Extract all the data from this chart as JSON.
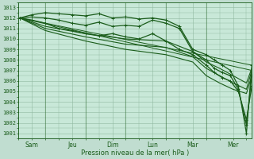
{
  "title": "Pression niveau de la mer( hPa )",
  "ylabel_values": [
    1001,
    1002,
    1003,
    1004,
    1005,
    1006,
    1007,
    1008,
    1009,
    1010,
    1011,
    1012,
    1013
  ],
  "ylim": [
    1000.5,
    1013.5
  ],
  "background_color": "#c0ddd0",
  "plot_bg_color": "#c8e8d8",
  "grid_color": "#90b8a0",
  "line_color": "#1a5c1a",
  "x_labels": [
    "Sam",
    "Jeu",
    "Dim",
    "Lun",
    "Mar",
    "Mer"
  ],
  "x_ticks_pos": [
    0.5,
    2.0,
    3.5,
    5.0,
    6.5,
    8.0
  ],
  "x_vlines": [
    0,
    1.0,
    2.5,
    4.0,
    5.5,
    7.0,
    8.7
  ],
  "xlim": [
    0,
    8.7
  ],
  "lines": [
    {
      "x": [
        0.05,
        0.5,
        1.0,
        1.5,
        2.0,
        2.5,
        3.0,
        3.5,
        4.0,
        4.5,
        5.0,
        5.5,
        6.0,
        6.5,
        7.0,
        7.3,
        7.6,
        7.9,
        8.2,
        8.5,
        8.7
      ],
      "y": [
        1012.0,
        1012.3,
        1012.5,
        1012.4,
        1012.3,
        1012.2,
        1012.4,
        1012.0,
        1012.1,
        1011.9,
        1012.0,
        1011.8,
        1011.2,
        1009.0,
        1008.5,
        1008.0,
        1007.5,
        1007.0,
        1005.5,
        1001.0,
        1007.5
      ],
      "marker": true,
      "lw": 0.9
    },
    {
      "x": [
        0.05,
        0.5,
        1.0,
        1.5,
        2.0,
        2.5,
        3.0,
        3.5,
        4.0,
        4.5,
        5.0,
        5.5,
        6.0,
        6.5,
        7.0,
        7.3,
        7.6,
        7.9,
        8.2,
        8.5,
        8.7
      ],
      "y": [
        1012.0,
        1012.1,
        1012.0,
        1011.8,
        1011.5,
        1011.3,
        1011.6,
        1011.2,
        1011.3,
        1011.2,
        1011.8,
        1011.5,
        1011.0,
        1008.8,
        1008.0,
        1007.2,
        1006.8,
        1006.5,
        1005.2,
        1001.8,
        1006.5
      ],
      "marker": true,
      "lw": 0.9
    },
    {
      "x": [
        0.05,
        0.5,
        1.0,
        1.5,
        2.0,
        2.5,
        3.0,
        3.5,
        4.0,
        4.5,
        5.0,
        5.5,
        6.0,
        6.5,
        7.0,
        7.3,
        7.6,
        7.9,
        8.2,
        8.5,
        8.7
      ],
      "y": [
        1012.0,
        1011.8,
        1011.5,
        1011.0,
        1010.8,
        1010.5,
        1010.3,
        1010.5,
        1010.2,
        1010.0,
        1010.5,
        1009.8,
        1009.0,
        1008.5,
        1007.5,
        1006.8,
        1006.3,
        1006.0,
        1005.0,
        1002.3,
        1005.5
      ],
      "marker": true,
      "lw": 0.9
    },
    {
      "x": [
        0.05,
        1.0,
        2.5,
        4.0,
        5.5,
        6.5,
        7.0,
        7.5,
        8.0,
        8.5,
        8.7
      ],
      "y": [
        1012.0,
        1011.2,
        1010.5,
        1010.0,
        1009.8,
        1008.8,
        1007.8,
        1007.2,
        1006.5,
        1005.8,
        1007.2
      ],
      "marker": false,
      "lw": 0.8
    },
    {
      "x": [
        0.05,
        1.0,
        2.5,
        4.0,
        5.5,
        6.5,
        7.0,
        7.5,
        8.0,
        8.5,
        8.7
      ],
      "y": [
        1012.0,
        1011.0,
        1010.2,
        1009.5,
        1009.2,
        1008.3,
        1007.2,
        1006.5,
        1005.8,
        1005.2,
        1007.0
      ],
      "marker": false,
      "lw": 0.8
    },
    {
      "x": [
        0.05,
        1.0,
        2.5,
        4.0,
        5.5,
        6.5,
        7.0,
        7.5,
        8.0,
        8.5,
        8.7
      ],
      "y": [
        1012.0,
        1010.8,
        1009.8,
        1009.0,
        1008.5,
        1007.8,
        1006.5,
        1005.8,
        1005.2,
        1004.8,
        1006.5
      ],
      "marker": false,
      "lw": 0.8
    },
    {
      "x": [
        0.05,
        8.7
      ],
      "y": [
        1012.0,
        1007.5
      ],
      "marker": false,
      "lw": 0.7
    },
    {
      "x": [
        0.05,
        8.7
      ],
      "y": [
        1012.0,
        1007.0
      ],
      "marker": false,
      "lw": 0.7
    }
  ],
  "figsize": [
    3.2,
    2.0
  ],
  "dpi": 100
}
